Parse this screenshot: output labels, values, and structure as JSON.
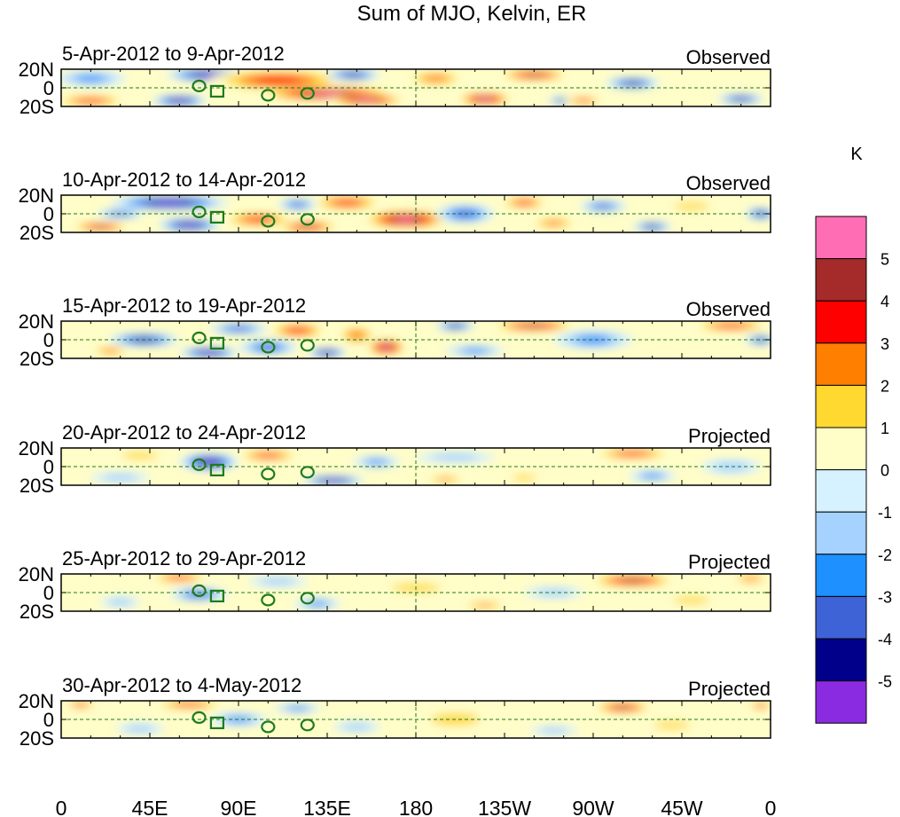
{
  "chart_data": {
    "type": "heatmap",
    "title": "Sum of MJO, Kelvin, ER",
    "lat_ticks": [
      "20N",
      "0",
      "20S"
    ],
    "lon_ticks": [
      "0",
      "45E",
      "90E",
      "135E",
      "180",
      "135W",
      "90W",
      "45W",
      "0"
    ],
    "lon_tick_values": [
      0,
      45,
      90,
      135,
      180,
      225,
      270,
      315,
      360
    ],
    "lat_range": [
      -20,
      20
    ],
    "lon_range": [
      0,
      360
    ],
    "colorbar": {
      "unit": "K",
      "labels": [
        "5",
        "4",
        "3",
        "2",
        "1",
        "0",
        "-1",
        "-2",
        "-3",
        "-4",
        "-5"
      ],
      "levels": [
        5,
        4,
        3,
        2,
        1,
        0,
        -1,
        -2,
        -3,
        -4,
        -5
      ],
      "colors": [
        "#ff6eb4",
        "#a52a2a",
        "#ff0000",
        "#ff7f00",
        "#ffd92f",
        "#fffdc8",
        "#d6f1ff",
        "#a5d2ff",
        "#1e90ff",
        "#3e63d6",
        "#00008b",
        "#8a2be2"
      ]
    },
    "panels": [
      {
        "date_range": "5-Apr-2012 to 9-Apr-2012",
        "status": "Observed",
        "blobs": [
          {
            "lon": 75,
            "lat": 14,
            "rlon": 22,
            "rlat": 7,
            "v": -5.5
          },
          {
            "lon": 110,
            "lat": 8,
            "rlon": 35,
            "rlat": 12,
            "v": 3.5
          },
          {
            "lon": 135,
            "lat": -6,
            "rlon": 35,
            "rlat": 8,
            "v": 5.5
          },
          {
            "lon": 155,
            "lat": -13,
            "rlon": 20,
            "rlat": 6,
            "v": 5.5
          },
          {
            "lon": 60,
            "lat": -14,
            "rlon": 14,
            "rlat": 6,
            "v": -5.5
          },
          {
            "lon": 15,
            "lat": -14,
            "rlon": 18,
            "rlat": 6,
            "v": 3.5
          },
          {
            "lon": 148,
            "lat": 14,
            "rlon": 14,
            "rlat": 6,
            "v": -4.5
          },
          {
            "lon": 190,
            "lat": 10,
            "rlon": 15,
            "rlat": 8,
            "v": 2.5
          },
          {
            "lon": 215,
            "lat": -12,
            "rlon": 14,
            "rlat": 7,
            "v": 5.5
          },
          {
            "lon": 240,
            "lat": 14,
            "rlon": 18,
            "rlat": 6,
            "v": 4.5
          },
          {
            "lon": 255,
            "lat": -14,
            "rlon": 8,
            "rlat": 4,
            "v": -4.5
          },
          {
            "lon": 290,
            "lat": 5,
            "rlon": 14,
            "rlat": 6,
            "v": -4.5
          },
          {
            "lon": 345,
            "lat": -12,
            "rlon": 12,
            "rlat": 5,
            "v": -4.5
          },
          {
            "lon": 15,
            "lat": 10,
            "rlon": 18,
            "rlat": 8,
            "v": -2.5
          },
          {
            "lon": 265,
            "lat": -14,
            "rlon": 10,
            "rlat": 4,
            "v": 3.5
          }
        ]
      },
      {
        "date_range": "10-Apr-2012 to 14-Apr-2012",
        "status": "Observed",
        "blobs": [
          {
            "lon": 55,
            "lat": 12,
            "rlon": 30,
            "rlat": 8,
            "v": -5.5
          },
          {
            "lon": 20,
            "lat": -14,
            "rlon": 15,
            "rlat": 5,
            "v": 4.5
          },
          {
            "lon": 65,
            "lat": -12,
            "rlon": 16,
            "rlat": 7,
            "v": -5.5
          },
          {
            "lon": 100,
            "lat": -6,
            "rlon": 18,
            "rlat": 8,
            "v": 3.5
          },
          {
            "lon": 125,
            "lat": -14,
            "rlon": 16,
            "rlat": 6,
            "v": 4.5
          },
          {
            "lon": 145,
            "lat": 12,
            "rlon": 18,
            "rlat": 8,
            "v": 3.5
          },
          {
            "lon": 175,
            "lat": -6,
            "rlon": 22,
            "rlat": 10,
            "v": 5.5
          },
          {
            "lon": 120,
            "lat": 10,
            "rlon": 10,
            "rlat": 6,
            "v": -3.5
          },
          {
            "lon": 30,
            "lat": 0,
            "rlon": 12,
            "rlat": 5,
            "v": -3.5
          },
          {
            "lon": 205,
            "lat": 0,
            "rlon": 15,
            "rlat": 10,
            "v": -3.5
          },
          {
            "lon": 235,
            "lat": 12,
            "rlon": 12,
            "rlat": 6,
            "v": 3.5
          },
          {
            "lon": 250,
            "lat": -10,
            "rlon": 12,
            "rlat": 6,
            "v": 2.5
          },
          {
            "lon": 275,
            "lat": 8,
            "rlon": 12,
            "rlat": 6,
            "v": -3.5
          },
          {
            "lon": 300,
            "lat": -14,
            "rlon": 10,
            "rlat": 5,
            "v": -4.5
          },
          {
            "lon": 355,
            "lat": 0,
            "rlon": 8,
            "rlat": 6,
            "v": -4.5
          },
          {
            "lon": 320,
            "lat": 8,
            "rlon": 15,
            "rlat": 6,
            "v": 1.5
          }
        ]
      },
      {
        "date_range": "15-Apr-2012 to 19-Apr-2012",
        "status": "Observed",
        "blobs": [
          {
            "lon": 42,
            "lat": 0,
            "rlon": 18,
            "rlat": 7,
            "v": -4.5
          },
          {
            "lon": 75,
            "lat": -14,
            "rlon": 15,
            "rlat": 6,
            "v": -5.5
          },
          {
            "lon": 120,
            "lat": 10,
            "rlon": 15,
            "rlat": 8,
            "v": 3.5
          },
          {
            "lon": 150,
            "lat": 5,
            "rlon": 10,
            "rlat": 10,
            "v": 2.5
          },
          {
            "lon": 165,
            "lat": -8,
            "rlon": 10,
            "rlat": 9,
            "v": 5.5
          },
          {
            "lon": 135,
            "lat": -14,
            "rlon": 10,
            "rlat": 5,
            "v": -5.5
          },
          {
            "lon": 105,
            "lat": -8,
            "rlon": 15,
            "rlat": 8,
            "v": -3.5
          },
          {
            "lon": 90,
            "lat": 12,
            "rlon": 15,
            "rlat": 6,
            "v": -3.5
          },
          {
            "lon": 200,
            "lat": 15,
            "rlon": 10,
            "rlat": 5,
            "v": -4.5
          },
          {
            "lon": 240,
            "lat": 15,
            "rlon": 22,
            "rlat": 6,
            "v": 4.5
          },
          {
            "lon": 270,
            "lat": 0,
            "rlon": 20,
            "rlat": 10,
            "v": -2.5
          },
          {
            "lon": 340,
            "lat": 15,
            "rlon": 20,
            "rlat": 6,
            "v": 3.5
          },
          {
            "lon": 355,
            "lat": 0,
            "rlon": 8,
            "rlat": 5,
            "v": -4.5
          },
          {
            "lon": 25,
            "lat": -12,
            "rlon": 10,
            "rlat": 5,
            "v": 2.5
          },
          {
            "lon": 210,
            "lat": -12,
            "rlon": 15,
            "rlat": 6,
            "v": -2.5
          }
        ]
      },
      {
        "date_range": "20-Apr-2012 to 24-Apr-2012",
        "status": "Projected",
        "blobs": [
          {
            "lon": 75,
            "lat": 5,
            "rlon": 15,
            "rlat": 9,
            "v": -5.5
          },
          {
            "lon": 105,
            "lat": 12,
            "rlon": 16,
            "rlat": 6,
            "v": 3.5
          },
          {
            "lon": 138,
            "lat": -15,
            "rlon": 16,
            "rlat": 5,
            "v": -5.5
          },
          {
            "lon": 40,
            "lat": 12,
            "rlon": 15,
            "rlat": 6,
            "v": 1.5
          },
          {
            "lon": 30,
            "lat": -12,
            "rlon": 15,
            "rlat": 6,
            "v": -1.5
          },
          {
            "lon": 195,
            "lat": -14,
            "rlon": 10,
            "rlat": 4,
            "v": 2.5
          },
          {
            "lon": 235,
            "lat": -12,
            "rlon": 10,
            "rlat": 5,
            "v": 1.5
          },
          {
            "lon": 290,
            "lat": 14,
            "rlon": 20,
            "rlat": 6,
            "v": 3.5
          },
          {
            "lon": 300,
            "lat": -10,
            "rlon": 12,
            "rlat": 6,
            "v": -2.5
          },
          {
            "lon": 200,
            "lat": 10,
            "rlon": 20,
            "rlat": 6,
            "v": -1.5
          },
          {
            "lon": 340,
            "lat": 0,
            "rlon": 15,
            "rlat": 8,
            "v": -1.5
          },
          {
            "lon": 160,
            "lat": 5,
            "rlon": 12,
            "rlat": 6,
            "v": -2.5
          }
        ]
      },
      {
        "date_range": "25-Apr-2012 to 29-Apr-2012",
        "status": "Projected",
        "blobs": [
          {
            "lon": 60,
            "lat": 16,
            "rlon": 15,
            "rlat": 5,
            "v": 3.5
          },
          {
            "lon": 290,
            "lat": 13,
            "rlon": 22,
            "rlat": 7,
            "v": 4.5
          },
          {
            "lon": 70,
            "lat": -2,
            "rlon": 15,
            "rlat": 7,
            "v": -3.5
          },
          {
            "lon": 130,
            "lat": -12,
            "rlon": 12,
            "rlat": 6,
            "v": -2.5
          },
          {
            "lon": 30,
            "lat": -10,
            "rlon": 10,
            "rlat": 6,
            "v": -1.5
          },
          {
            "lon": 215,
            "lat": -14,
            "rlon": 12,
            "rlat": 4,
            "v": 2.5
          },
          {
            "lon": 350,
            "lat": 15,
            "rlon": 10,
            "rlat": 5,
            "v": 2.5
          },
          {
            "lon": 180,
            "lat": 5,
            "rlon": 20,
            "rlat": 7,
            "v": 1.5
          },
          {
            "lon": 110,
            "lat": 12,
            "rlon": 15,
            "rlat": 6,
            "v": -1.5
          },
          {
            "lon": 320,
            "lat": -8,
            "rlon": 15,
            "rlat": 6,
            "v": 1.5
          },
          {
            "lon": 250,
            "lat": 0,
            "rlon": 15,
            "rlat": 6,
            "v": -1.5
          }
        ]
      },
      {
        "date_range": "30-Apr-2012 to 4-May-2012",
        "status": "Projected",
        "blobs": [
          {
            "lon": 65,
            "lat": 16,
            "rlon": 18,
            "rlat": 5,
            "v": 3.5
          },
          {
            "lon": 285,
            "lat": 13,
            "rlon": 15,
            "rlat": 6,
            "v": 4.5
          },
          {
            "lon": 10,
            "lat": 16,
            "rlon": 8,
            "rlat": 4,
            "v": 3.5
          },
          {
            "lon": 355,
            "lat": 15,
            "rlon": 6,
            "rlat": 4,
            "v": 3.5
          },
          {
            "lon": 90,
            "lat": 0,
            "rlon": 15,
            "rlat": 7,
            "v": -2.5
          },
          {
            "lon": 120,
            "lat": 12,
            "rlon": 12,
            "rlat": 5,
            "v": -2.5
          },
          {
            "lon": 40,
            "lat": -10,
            "rlon": 12,
            "rlat": 6,
            "v": -1.5
          },
          {
            "lon": 200,
            "lat": 0,
            "rlon": 20,
            "rlat": 10,
            "v": 1.5
          },
          {
            "lon": 310,
            "lat": -6,
            "rlon": 15,
            "rlat": 6,
            "v": 1.5
          },
          {
            "lon": 250,
            "lat": -12,
            "rlon": 12,
            "rlat": 5,
            "v": -1.5
          },
          {
            "lon": 150,
            "lat": -8,
            "rlon": 12,
            "rlat": 6,
            "v": -1.5
          }
        ]
      }
    ]
  }
}
